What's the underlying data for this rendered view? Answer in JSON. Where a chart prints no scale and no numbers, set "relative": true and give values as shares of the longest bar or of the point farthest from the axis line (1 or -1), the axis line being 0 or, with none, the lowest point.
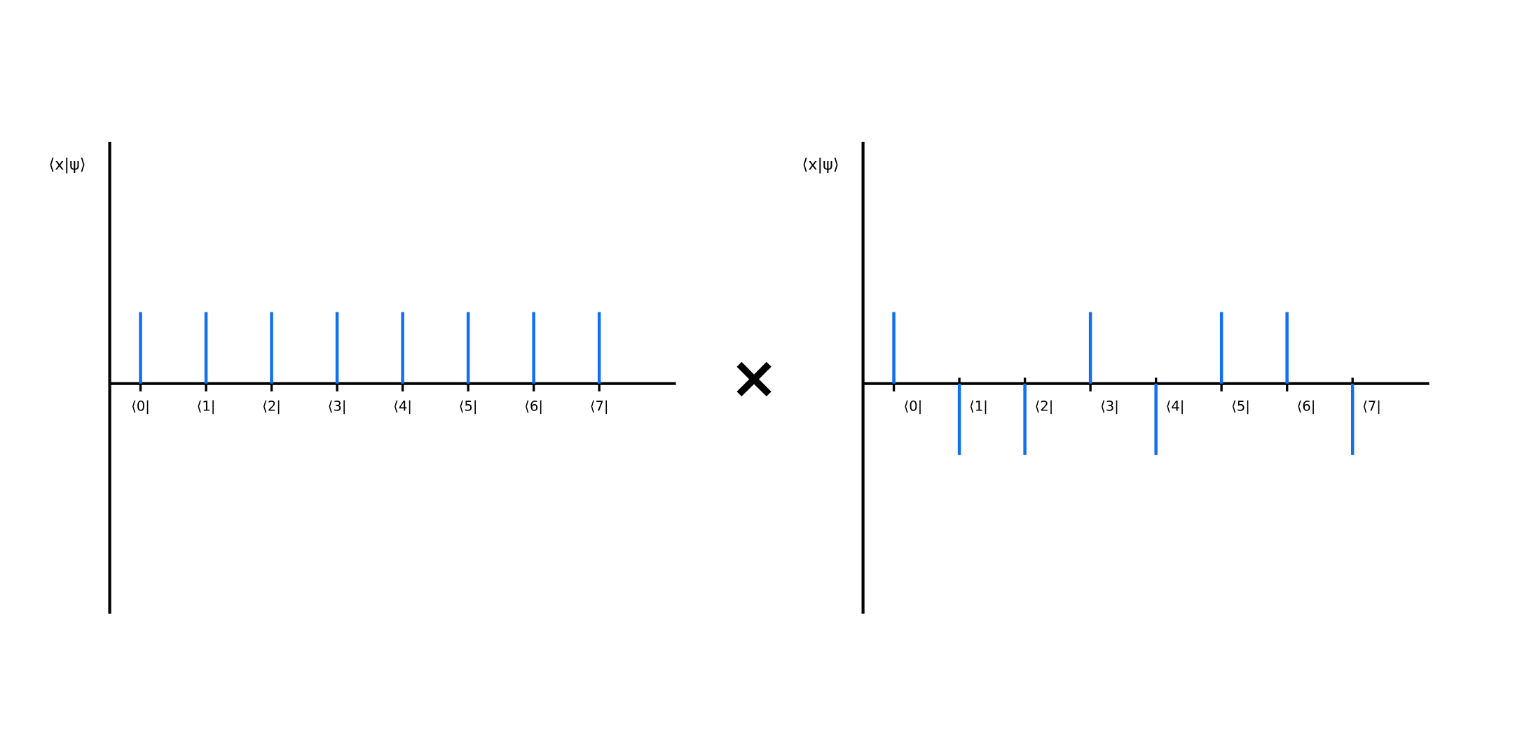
{
  "chart_data": [
    {
      "type": "bar",
      "ylabel": "⟨x|ψ⟩",
      "categories": [
        "⟨0|",
        "⟨1|",
        "⟨2|",
        "⟨3|",
        "⟨4|",
        "⟨5|",
        "⟨6|",
        "⟨7|"
      ],
      "values": [
        1,
        1,
        1,
        1,
        1,
        1,
        1,
        1
      ],
      "color": "#1070f0",
      "relative": true,
      "annotations": [
        "×"
      ]
    },
    {
      "type": "bar",
      "ylabel": "⟨x|ψ⟩",
      "categories": [
        "⟨0|",
        "⟨1|",
        "⟨2|",
        "⟨3|",
        "⟨4|",
        "⟨5|",
        "⟨6|",
        "⟨7|"
      ],
      "values": [
        1,
        -1,
        -1,
        1,
        -1,
        1,
        1,
        -1
      ],
      "color": "#1070f0",
      "relative": true
    }
  ]
}
